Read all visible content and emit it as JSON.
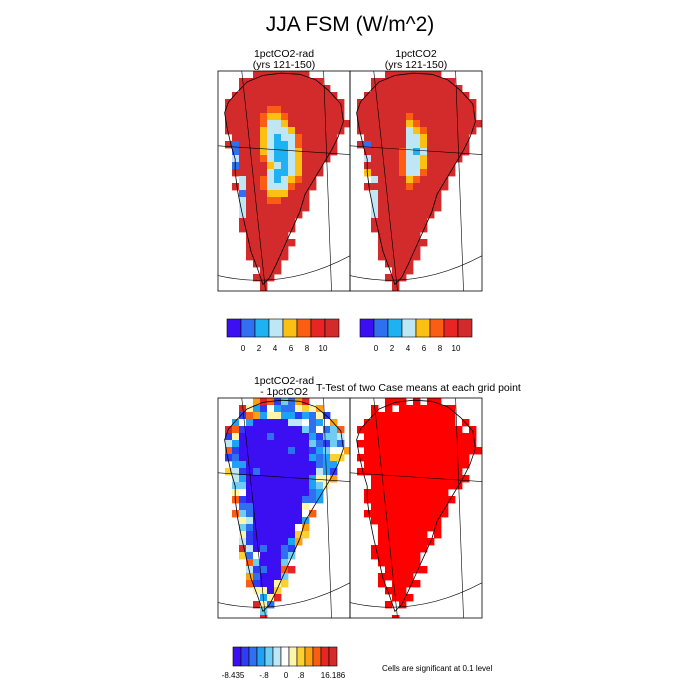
{
  "title": "JJA FSM (W/m^2)",
  "palettes": {
    "fsm": [
      "#3b0ff2",
      "#2f6ff0",
      "#1fb2f3",
      "#bfe6f4",
      "#fcc013",
      "#fb5d12",
      "#e82424",
      "#d32b2b"
    ],
    "diff": [
      "#3b0ff2",
      "#2f3df2",
      "#2f6ff0",
      "#1fa2f3",
      "#6fcdf4",
      "#bfe6f4",
      "#ffffff",
      "#fff5a8",
      "#fcd030",
      "#fca012",
      "#fb5d12",
      "#e82424",
      "#d32b2b"
    ],
    "sig": "#ff0000",
    "coast": "#000000"
  },
  "panels": [
    {
      "id": "p1",
      "title_lines": [
        "1pctCO2-rad",
        "(yrs 121-150)"
      ],
      "variant": "rad"
    },
    {
      "id": "p2",
      "title_lines": [
        "1pctCO2",
        "(yrs 121-150)"
      ],
      "variant": "ctl"
    },
    {
      "id": "p3",
      "title_lines": [
        "1pctCO2-rad",
        "- 1pctCO2"
      ],
      "variant": "diff"
    },
    {
      "id": "p4",
      "title_lines": [
        "T-Test of two Case means at each grid point"
      ],
      "variant": "ttest"
    }
  ],
  "colorbars": [
    {
      "id": "cb1",
      "labels": [
        "0",
        "2",
        "4",
        "6",
        "8",
        "10"
      ]
    },
    {
      "id": "cb2",
      "labels": [
        "0",
        "2",
        "4",
        "6",
        "8",
        "10"
      ]
    },
    {
      "id": "cb3",
      "labels": [
        "-8.435",
        "-.8",
        "0",
        ".8",
        "16.186"
      ]
    }
  ],
  "chart_data": {
    "type": "heatmap",
    "title": "JJA FSM (W/m^2)",
    "region": "Greenland",
    "mean_fields": {
      "levels": [
        0,
        2,
        4,
        6,
        8,
        10
      ],
      "panels": [
        "1pctCO2-rad (yrs 121-150)",
        "1pctCO2 (yrs 121-150)"
      ]
    },
    "difference_field": {
      "panel": "1pctCO2-rad - 1pctCO2",
      "min": -8.435,
      "max": 16.186,
      "levels": [
        -0.8,
        0,
        0.8
      ]
    },
    "significance": {
      "panel": "T-Test of two Case means at each grid point",
      "note": "Cells are significant at 0.1 level"
    }
  },
  "note": "Cells are significant at 0.1 level"
}
